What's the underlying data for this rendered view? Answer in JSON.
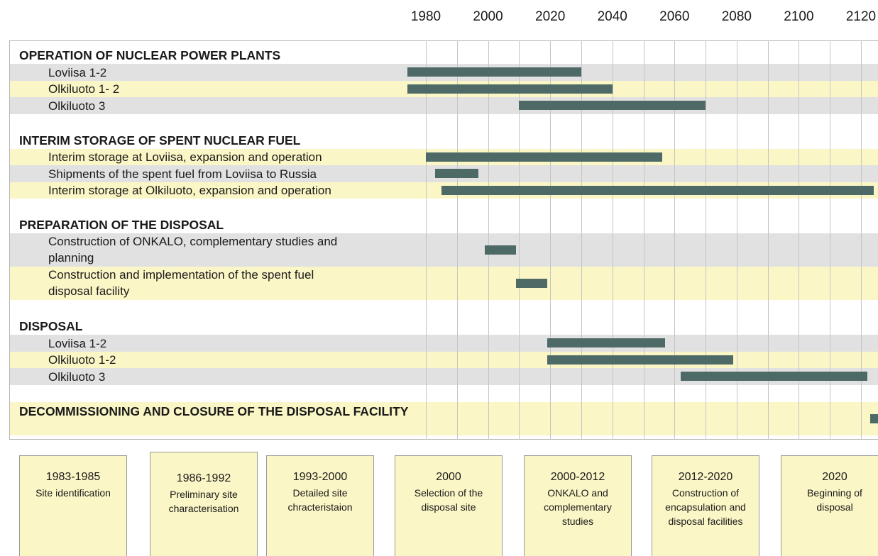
{
  "chart_data": {
    "type": "gantt",
    "xlim": [
      1980,
      2120
    ],
    "xticks": [
      1980,
      2000,
      2020,
      2040,
      2060,
      2080,
      2100,
      2120
    ],
    "xminorticks": [
      1990,
      2010,
      2030,
      2050,
      2070,
      2090,
      2110
    ],
    "grid": true,
    "bar_color": "#4e6a66",
    "band_colors": [
      "#e1e1e1",
      "#fbf6c6"
    ],
    "groups": [
      {
        "title": "OPERATION OF NUCLEAR POWER PLANTS",
        "tasks": [
          {
            "name": "Loviisa 1-2",
            "start": 1974,
            "end": 2030
          },
          {
            "name": "Olkiluoto 1- 2",
            "start": 1974,
            "end": 2040
          },
          {
            "name": "Olkiluoto 3",
            "start": 2010,
            "end": 2070
          }
        ]
      },
      {
        "title": "INTERIM STORAGE OF SPENT NUCLEAR FUEL",
        "tasks": [
          {
            "name": "Interim storage at Loviisa, expansion and operation",
            "start": 1980,
            "end": 2056
          },
          {
            "name": "Shipments of the spent fuel from Loviisa to Russia",
            "start": 1983,
            "end": 1997
          },
          {
            "name": "Interim storage at Olkiluoto, expansion and operation",
            "start": 1985,
            "end": 2124
          }
        ]
      },
      {
        "title": "PREPARATION OF THE DISPOSAL",
        "tasks": [
          {
            "name": "Construction of ONKALO, complementary studies and planning",
            "start": 1999,
            "end": 2009
          },
          {
            "name": "Construction and implementation of the spent fuel disposal facility",
            "start": 2009,
            "end": 2019
          }
        ]
      },
      {
        "title": "DISPOSAL",
        "tasks": [
          {
            "name": "Loviisa 1-2",
            "start": 2019,
            "end": 2057
          },
          {
            "name": "Olkiluoto 1-2",
            "start": 2019,
            "end": 2079
          },
          {
            "name": "Olkiluoto 3",
            "start": 2062,
            "end": 2122
          }
        ]
      },
      {
        "title": "DECOMMISSIONING AND CLOSURE OF THE DISPOSAL FACILITY",
        "start": 2123,
        "end": 2126,
        "tasks": []
      }
    ],
    "milestones": [
      {
        "period": "1983-1985",
        "text": "Site identification"
      },
      {
        "period": "1986-1992",
        "text": "Preliminary site characterisation"
      },
      {
        "period": "1993-2000",
        "text": "Detailed site chracteristaion"
      },
      {
        "period": "2000",
        "text": "Selection of the disposal site"
      },
      {
        "period": "2000-2012",
        "text": "ONKALO and complementary studies"
      },
      {
        "period": "2012-2020",
        "text": "Construction of encapsulation and disposal facilities"
      },
      {
        "period": "2020",
        "text": "Beginning of disposal"
      }
    ]
  }
}
